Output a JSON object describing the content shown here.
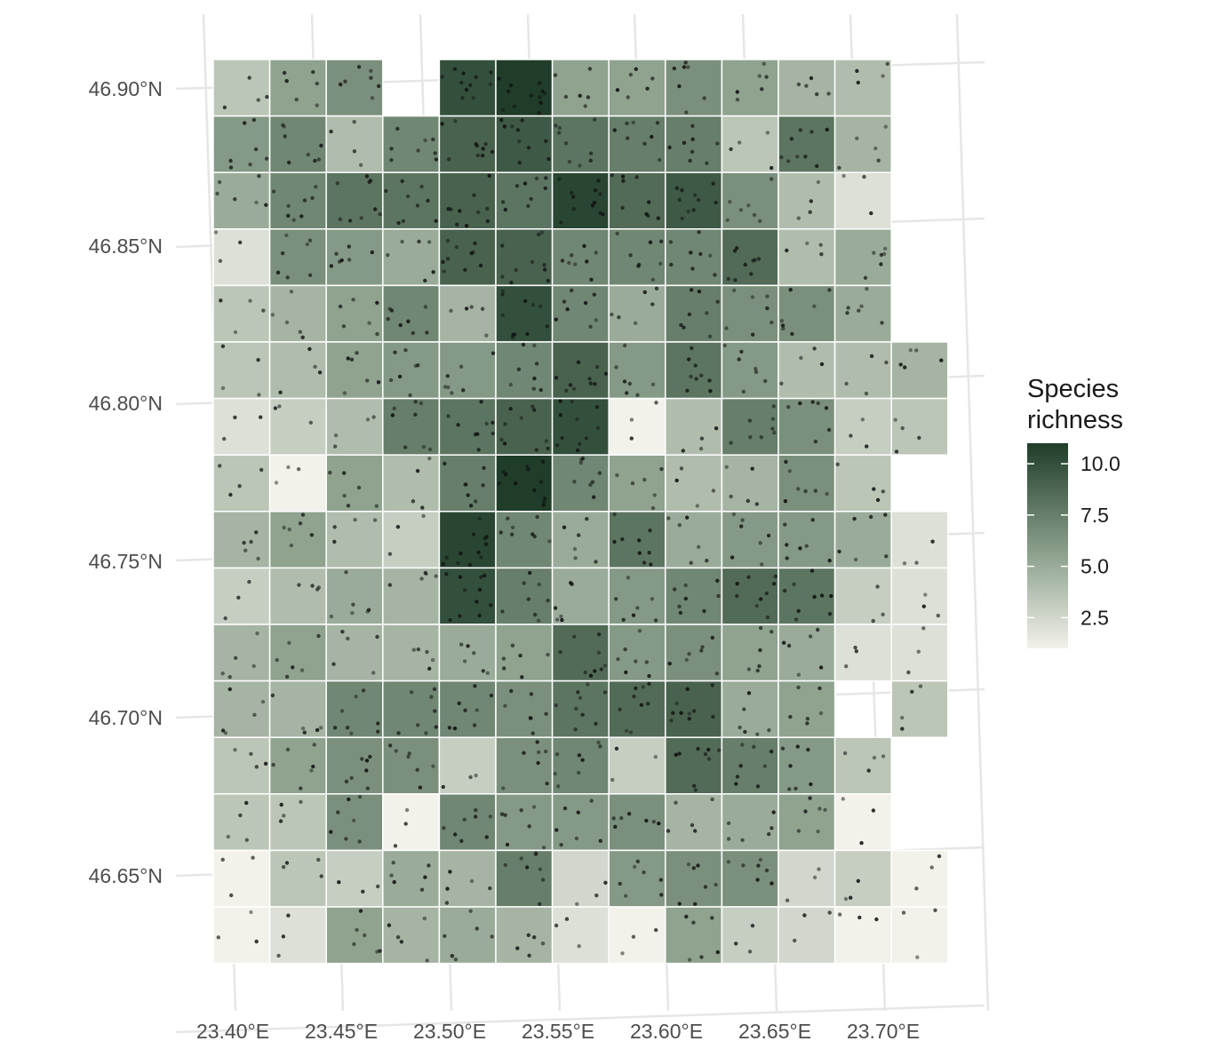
{
  "legend": {
    "title_line1": "Species",
    "title_line2": "richness",
    "ticks": [
      {
        "value": 10.0,
        "label": "10.0"
      },
      {
        "value": 7.5,
        "label": "7.5"
      },
      {
        "value": 5.0,
        "label": "5.0"
      },
      {
        "value": 2.5,
        "label": "2.5"
      }
    ],
    "range": [
      1,
      11
    ],
    "colors": {
      "low": "#f2f1ea",
      "mid": "#8fa38f",
      "high": "#1f3d29"
    }
  },
  "axes": {
    "x_ticks": [
      "23.40°E",
      "23.45°E",
      "23.50°E",
      "23.55°E",
      "23.60°E",
      "23.65°E",
      "23.70°E"
    ],
    "y_ticks": [
      "46.90°N",
      "46.85°N",
      "46.80°N",
      "46.75°N",
      "46.70°N",
      "46.65°N"
    ]
  },
  "chart_data": {
    "type": "heatmap",
    "description_scale": "Species richness",
    "grid_rows": 16,
    "grid_cols": 13,
    "richness": [
      [
        3.5,
        5.5,
        6.5,
        null,
        10,
        11,
        5.5,
        5.5,
        6.5,
        5.5,
        4.5,
        4,
        null
      ],
      [
        6,
        7,
        4,
        7,
        9,
        9.5,
        8,
        7.5,
        7.5,
        3.5,
        8,
        4.5,
        null
      ],
      [
        5,
        7,
        8,
        8,
        9,
        8,
        10.5,
        8.5,
        9.5,
        6.5,
        4,
        2,
        null
      ],
      [
        2,
        6.5,
        6,
        5,
        9,
        9,
        7,
        7,
        7,
        8.5,
        4,
        5,
        null
      ],
      [
        3.5,
        4.5,
        5.5,
        7,
        4.5,
        10,
        7,
        5,
        7.5,
        6.5,
        6.5,
        5,
        null
      ],
      [
        3.5,
        4,
        5.5,
        6,
        6,
        7,
        9,
        6,
        8,
        6,
        4,
        4,
        4.5
      ],
      [
        2,
        3,
        4,
        7.5,
        8,
        9,
        10,
        1,
        4,
        7.5,
        6.5,
        3,
        3.5
      ],
      [
        3.5,
        1,
        5.5,
        4,
        7.5,
        11,
        7,
        5.5,
        4,
        4.5,
        6.5,
        3.5,
        null
      ],
      [
        4.5,
        5.5,
        4,
        3,
        10.5,
        7,
        5,
        8,
        5,
        6,
        6,
        5,
        2
      ],
      [
        3,
        4,
        5,
        4.5,
        10,
        7.5,
        5,
        6,
        7,
        8.5,
        8,
        3,
        2
      ],
      [
        4.5,
        5.5,
        4.5,
        4.5,
        5,
        5.5,
        8.5,
        6,
        6.5,
        5.5,
        5,
        2,
        2
      ],
      [
        4.5,
        4.5,
        7,
        7,
        7,
        6.5,
        8,
        8.5,
        9,
        5,
        5.5,
        null,
        3.5
      ],
      [
        3.5,
        5.5,
        6.5,
        6.5,
        3,
        6.5,
        7,
        3,
        8.5,
        7.5,
        6,
        3.5,
        null
      ],
      [
        3.5,
        3.5,
        6.5,
        1,
        7,
        6,
        6,
        6.5,
        4.5,
        5,
        5.5,
        1,
        null
      ],
      [
        1,
        3.5,
        3,
        5,
        4.5,
        7.5,
        2.5,
        6,
        6.5,
        6.5,
        2.5,
        3,
        1
      ],
      [
        1,
        2,
        5.5,
        4.5,
        5,
        4.5,
        2,
        1,
        5.5,
        3,
        2.5,
        1,
        1
      ]
    ]
  }
}
